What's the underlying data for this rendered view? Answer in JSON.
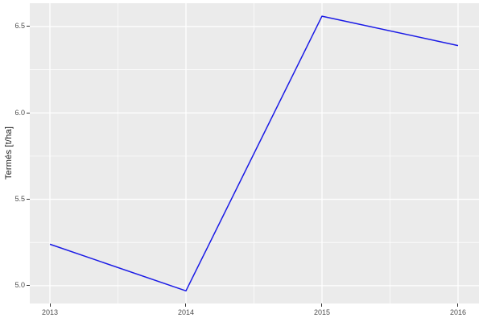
{
  "chart_data": {
    "type": "line",
    "title": "",
    "xlabel": "",
    "ylabel": "Termés [t/ha]",
    "x": [
      2013,
      2014,
      2015,
      2016
    ],
    "series": [
      {
        "name": "Termés",
        "values": [
          5.24,
          4.97,
          6.56,
          6.39
        ]
      }
    ],
    "x_tick_labels": [
      "2013",
      "2014",
      "2015",
      "2016"
    ],
    "x_tick_values": [
      2013,
      2014,
      2015,
      2016
    ],
    "y_tick_labels": [
      "5.0",
      "5.5",
      "6.0",
      "6.5"
    ],
    "y_tick_values": [
      5.0,
      5.5,
      6.0,
      6.5
    ],
    "x_domain": [
      2012.852,
      2016.154
    ],
    "y_domain": [
      4.897,
      6.635
    ],
    "grid": "major+minor",
    "legend": "none",
    "line_color": "#1A1AE6",
    "panel_bg": "#EBEBEB",
    "grid_color": "#FFFFFF",
    "tick_label_color": "#4D4D4D",
    "tick_mark_color": "#333333",
    "axis_title_color": "#1A1A1A"
  }
}
